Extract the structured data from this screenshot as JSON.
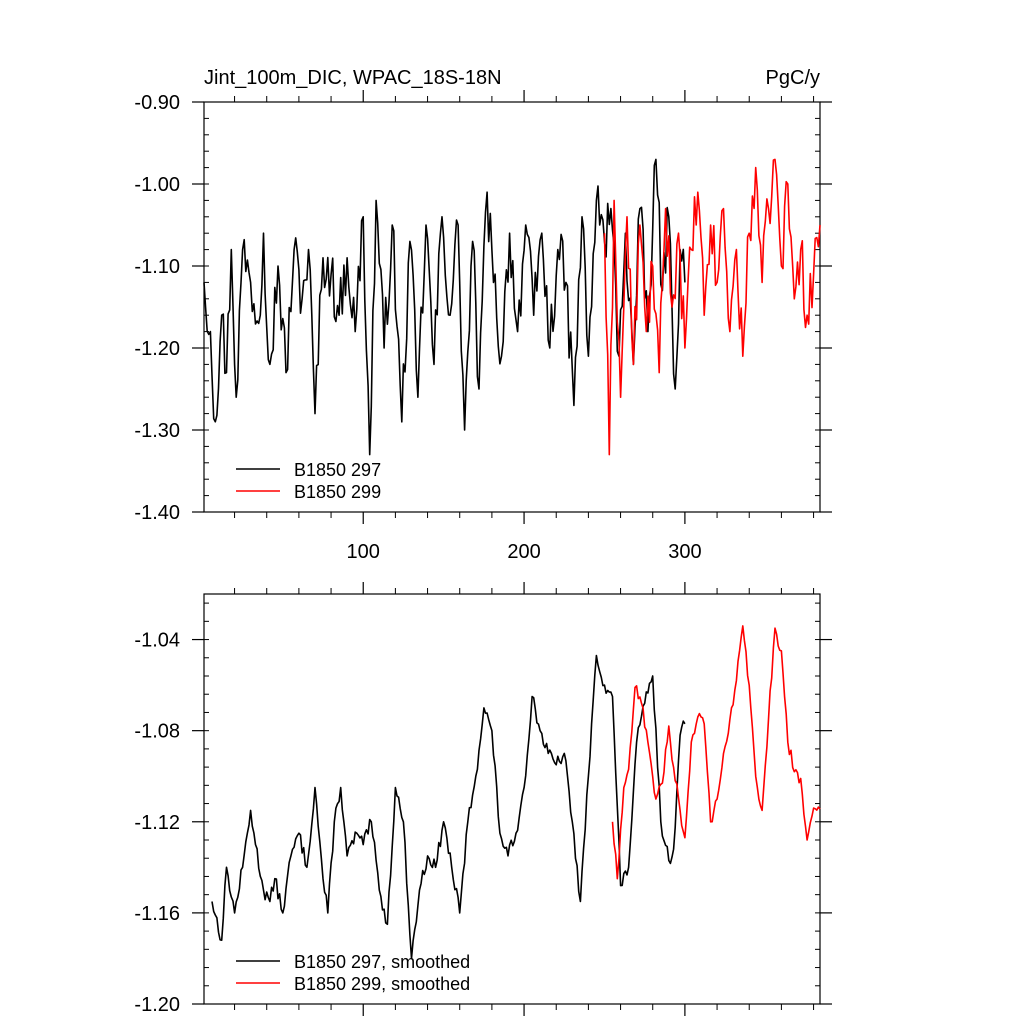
{
  "header": {
    "title": "Jint_100m_DIC, WPAC_18S-18N",
    "units": "PgC/y"
  },
  "colors": {
    "series1": "#000000",
    "series2": "#ff0000",
    "axis": "#000000"
  },
  "chart_data": [
    {
      "type": "line",
      "title": "Jint_100m_DIC, WPAC_18S-18N",
      "units": "PgC/y",
      "xlim": [
        1,
        384
      ],
      "ylim": [
        -1.4,
        -0.9
      ],
      "x_ticks": [
        100,
        200,
        300
      ],
      "x_tick_labels": [
        "100",
        "200",
        "300"
      ],
      "y_ticks": [
        -1.4,
        -1.3,
        -1.2,
        -1.1,
        -1.0,
        -0.9
      ],
      "y_tick_labels": [
        "-1.40",
        "-1.30",
        "-1.20",
        "-1.10",
        "-1.00",
        "-0.90"
      ],
      "legend": {
        "position": "bottom-left",
        "entries": [
          "B1850 297",
          "B1850 299"
        ]
      },
      "series": [
        {
          "name": "B1850 297",
          "color": "#000000",
          "x_start": 1,
          "x_end": 300,
          "anchors": [
            [
              1,
              -1.12
            ],
            [
              5,
              -1.18
            ],
            [
              8,
              -1.29
            ],
            [
              12,
              -1.16
            ],
            [
              15,
              -1.23
            ],
            [
              18,
              -1.08
            ],
            [
              21,
              -1.26
            ],
            [
              25,
              -1.08
            ],
            [
              30,
              -1.12
            ],
            [
              35,
              -1.17
            ],
            [
              38,
              -1.06
            ],
            [
              42,
              -1.22
            ],
            [
              47,
              -1.1
            ],
            [
              52,
              -1.23
            ],
            [
              57,
              -1.08
            ],
            [
              62,
              -1.14
            ],
            [
              66,
              -1.08
            ],
            [
              70,
              -1.28
            ],
            [
              75,
              -1.09
            ],
            [
              80,
              -1.11
            ],
            [
              85,
              -1.16
            ],
            [
              90,
              -1.09
            ],
            [
              95,
              -1.18
            ],
            [
              100,
              -1.04
            ],
            [
              104,
              -1.33
            ],
            [
              108,
              -1.02
            ],
            [
              113,
              -1.2
            ],
            [
              118,
              -1.05
            ],
            [
              124,
              -1.29
            ],
            [
              129,
              -1.07
            ],
            [
              134,
              -1.26
            ],
            [
              139,
              -1.05
            ],
            [
              144,
              -1.22
            ],
            [
              149,
              -1.04
            ],
            [
              154,
              -1.16
            ],
            [
              159,
              -1.05
            ],
            [
              163,
              -1.3
            ],
            [
              168,
              -1.07
            ],
            [
              172,
              -1.25
            ],
            [
              177,
              -1.01
            ],
            [
              181,
              -1.12
            ],
            [
              186,
              -1.21
            ],
            [
              191,
              -1.06
            ],
            [
              196,
              -1.18
            ],
            [
              201,
              -1.05
            ],
            [
              206,
              -1.16
            ],
            [
              211,
              -1.06
            ],
            [
              216,
              -1.2
            ],
            [
              221,
              -1.08
            ],
            [
              226,
              -1.12
            ],
            [
              231,
              -1.27
            ],
            [
              236,
              -1.04
            ],
            [
              240,
              -1.21
            ],
            [
              245,
              -1.02
            ],
            [
              250,
              -1.07
            ],
            [
              254,
              -1.03
            ],
            [
              259,
              -1.21
            ],
            [
              263,
              -1.06
            ],
            [
              268,
              -1.22
            ],
            [
              272,
              -1.03
            ],
            [
              277,
              -1.18
            ],
            [
              282,
              -0.97
            ],
            [
              286,
              -1.13
            ],
            [
              290,
              -1.04
            ],
            [
              294,
              -1.25
            ],
            [
              297,
              -1.08
            ],
            [
              300,
              -1.12
            ]
          ]
        },
        {
          "name": "B1850 299",
          "color": "#ff0000",
          "x_start": 250,
          "x_end": 384,
          "anchors": [
            [
              250,
              -1.06
            ],
            [
              253,
              -1.33
            ],
            [
              256,
              -1.02
            ],
            [
              260,
              -1.26
            ],
            [
              264,
              -1.04
            ],
            [
              268,
              -1.22
            ],
            [
              272,
              -1.05
            ],
            [
              276,
              -1.18
            ],
            [
              280,
              -1.1
            ],
            [
              284,
              -1.23
            ],
            [
              288,
              -1.03
            ],
            [
              292,
              -1.15
            ],
            [
              296,
              -1.06
            ],
            [
              300,
              -1.2
            ],
            [
              304,
              -1.08
            ],
            [
              308,
              -1.01
            ],
            [
              312,
              -1.16
            ],
            [
              316,
              -1.05
            ],
            [
              320,
              -1.12
            ],
            [
              324,
              -1.03
            ],
            [
              328,
              -1.18
            ],
            [
              332,
              -1.08
            ],
            [
              336,
              -1.21
            ],
            [
              340,
              -1.06
            ],
            [
              344,
              -0.98
            ],
            [
              348,
              -1.12
            ],
            [
              352,
              -1.03
            ],
            [
              356,
              -0.97
            ],
            [
              360,
              -1.1
            ],
            [
              364,
              -1.0
            ],
            [
              368,
              -1.14
            ],
            [
              372,
              -1.08
            ],
            [
              376,
              -1.16
            ],
            [
              380,
              -1.11
            ],
            [
              384,
              -1.05
            ]
          ]
        }
      ]
    },
    {
      "type": "line",
      "xlim": [
        1,
        384
      ],
      "ylim": [
        -1.2,
        -1.02
      ],
      "x_ticks": [
        100,
        200,
        300
      ],
      "y_ticks": [
        -1.2,
        -1.16,
        -1.12,
        -1.08,
        -1.04
      ],
      "y_tick_labels": [
        "-1.20",
        "-1.16",
        "-1.12",
        "-1.08",
        "-1.04"
      ],
      "legend": {
        "position": "bottom-left",
        "entries": [
          "B1850 297, smoothed",
          "B1850 299, smoothed"
        ]
      },
      "series": [
        {
          "name": "B1850 297, smoothed",
          "color": "#000000",
          "x_start": 6,
          "x_end": 300,
          "anchors": [
            [
              6,
              -1.155
            ],
            [
              12,
              -1.172
            ],
            [
              15,
              -1.14
            ],
            [
              20,
              -1.16
            ],
            [
              25,
              -1.14
            ],
            [
              30,
              -1.115
            ],
            [
              33,
              -1.13
            ],
            [
              38,
              -1.15
            ],
            [
              42,
              -1.155
            ],
            [
              45,
              -1.145
            ],
            [
              50,
              -1.16
            ],
            [
              55,
              -1.135
            ],
            [
              60,
              -1.125
            ],
            [
              65,
              -1.14
            ],
            [
              70,
              -1.105
            ],
            [
              75,
              -1.145
            ],
            [
              78,
              -1.16
            ],
            [
              82,
              -1.12
            ],
            [
              86,
              -1.105
            ],
            [
              90,
              -1.135
            ],
            [
              96,
              -1.125
            ],
            [
              100,
              -1.13
            ],
            [
              105,
              -1.12
            ],
            [
              110,
              -1.15
            ],
            [
              115,
              -1.165
            ],
            [
              120,
              -1.105
            ],
            [
              125,
              -1.12
            ],
            [
              130,
              -1.18
            ],
            [
              135,
              -1.15
            ],
            [
              140,
              -1.135
            ],
            [
              145,
              -1.14
            ],
            [
              150,
              -1.12
            ],
            [
              155,
              -1.14
            ],
            [
              160,
              -1.16
            ],
            [
              165,
              -1.12
            ],
            [
              170,
              -1.1
            ],
            [
              175,
              -1.07
            ],
            [
              180,
              -1.08
            ],
            [
              185,
              -1.125
            ],
            [
              190,
              -1.135
            ],
            [
              195,
              -1.125
            ],
            [
              200,
              -1.105
            ],
            [
              205,
              -1.065
            ],
            [
              210,
              -1.08
            ],
            [
              215,
              -1.09
            ],
            [
              220,
              -1.095
            ],
            [
              225,
              -1.09
            ],
            [
              230,
              -1.12
            ],
            [
              235,
              -1.155
            ],
            [
              240,
              -1.1
            ],
            [
              245,
              -1.047
            ],
            [
              250,
              -1.06
            ],
            [
              255,
              -1.065
            ],
            [
              260,
              -1.148
            ],
            [
              265,
              -1.14
            ],
            [
              270,
              -1.085
            ],
            [
              275,
              -1.068
            ],
            [
              280,
              -1.056
            ],
            [
              285,
              -1.12
            ],
            [
              290,
              -1.137
            ],
            [
              293,
              -1.132
            ],
            [
              297,
              -1.082
            ],
            [
              300,
              -1.077
            ]
          ]
        },
        {
          "name": "B1850 299, smoothed",
          "color": "#ff0000",
          "x_start": 255,
          "x_end": 384,
          "anchors": [
            [
              255,
              -1.12
            ],
            [
              258,
              -1.145
            ],
            [
              262,
              -1.105
            ],
            [
              265,
              -1.097
            ],
            [
              269,
              -1.061
            ],
            [
              273,
              -1.068
            ],
            [
              277,
              -1.085
            ],
            [
              282,
              -1.11
            ],
            [
              286,
              -1.103
            ],
            [
              290,
              -1.078
            ],
            [
              294,
              -1.102
            ],
            [
              297,
              -1.115
            ],
            [
              300,
              -1.127
            ],
            [
              304,
              -1.085
            ],
            [
              308,
              -1.074
            ],
            [
              312,
              -1.077
            ],
            [
              316,
              -1.12
            ],
            [
              320,
              -1.11
            ],
            [
              324,
              -1.09
            ],
            [
              328,
              -1.075
            ],
            [
              332,
              -1.058
            ],
            [
              336,
              -1.034
            ],
            [
              340,
              -1.06
            ],
            [
              344,
              -1.1
            ],
            [
              348,
              -1.115
            ],
            [
              352,
              -1.075
            ],
            [
              356,
              -1.035
            ],
            [
              360,
              -1.045
            ],
            [
              364,
              -1.085
            ],
            [
              368,
              -1.098
            ],
            [
              372,
              -1.101
            ],
            [
              376,
              -1.128
            ],
            [
              380,
              -1.114
            ]
          ]
        }
      ]
    }
  ]
}
